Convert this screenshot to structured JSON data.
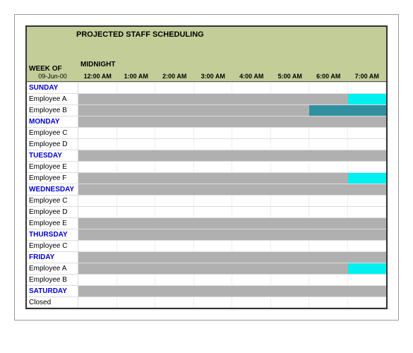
{
  "title": "PROJECTED STAFF SCHEDULING",
  "week_of_label": "WEEK OF",
  "week_of_date": "09-Jun-00",
  "midnight_label": "MIDNIGHT",
  "time_headers": [
    "12:00 AM",
    "1:00 AM",
    "2:00 AM",
    "3:00 AM",
    "4:00 AM",
    "5:00 AM",
    "6:00 AM",
    "7:00 AM"
  ],
  "colors": {
    "header_bg": "#c3cd98",
    "day_label": "#0000cc",
    "bar_gray": "#b0b0b0",
    "bar_cyan": "#00f0f0",
    "bar_teal": "#3090a0"
  },
  "rows": [
    {
      "type": "day",
      "label": "SUNDAY",
      "bars": []
    },
    {
      "type": "emp",
      "label": "Employee A",
      "bars": [
        {
          "start": 0,
          "end": 87.5,
          "color": "#b0b0b0"
        },
        {
          "start": 87.5,
          "end": 100,
          "color": "#00f0f0"
        }
      ]
    },
    {
      "type": "emp",
      "label": "Employee B",
      "bars": [
        {
          "start": 0,
          "end": 75,
          "color": "#b0b0b0"
        },
        {
          "start": 75,
          "end": 100,
          "color": "#3090a0"
        }
      ]
    },
    {
      "type": "day",
      "label": "MONDAY",
      "bars": [
        {
          "start": 0,
          "end": 100,
          "color": "#b0b0b0"
        }
      ]
    },
    {
      "type": "emp",
      "label": "Employee C",
      "bars": []
    },
    {
      "type": "emp",
      "label": "Employee D",
      "bars": []
    },
    {
      "type": "day",
      "label": "TUESDAY",
      "bars": [
        {
          "start": 0,
          "end": 100,
          "color": "#b0b0b0"
        }
      ]
    },
    {
      "type": "emp",
      "label": "Employee E",
      "bars": []
    },
    {
      "type": "emp",
      "label": "Employee F",
      "bars": [
        {
          "start": 0,
          "end": 87.5,
          "color": "#b0b0b0"
        },
        {
          "start": 87.5,
          "end": 100,
          "color": "#00f0f0"
        }
      ]
    },
    {
      "type": "day",
      "label": "WEDNESDAY",
      "bars": [
        {
          "start": 0,
          "end": 100,
          "color": "#b0b0b0"
        }
      ]
    },
    {
      "type": "emp",
      "label": "Employee C",
      "bars": []
    },
    {
      "type": "emp",
      "label": "Employee D",
      "bars": []
    },
    {
      "type": "emp",
      "label": "Employee E",
      "bars": [
        {
          "start": 0,
          "end": 100,
          "color": "#b0b0b0"
        }
      ]
    },
    {
      "type": "day",
      "label": "THURSDAY",
      "bars": [
        {
          "start": 0,
          "end": 100,
          "color": "#b0b0b0"
        }
      ]
    },
    {
      "type": "emp",
      "label": "Employee C",
      "bars": []
    },
    {
      "type": "day",
      "label": "FRIDAY",
      "bars": [
        {
          "start": 0,
          "end": 100,
          "color": "#b0b0b0"
        }
      ]
    },
    {
      "type": "emp",
      "label": "Employee A",
      "bars": [
        {
          "start": 0,
          "end": 87.5,
          "color": "#b0b0b0"
        },
        {
          "start": 87.5,
          "end": 100,
          "color": "#00f0f0"
        }
      ]
    },
    {
      "type": "emp",
      "label": "Employee B",
      "bars": []
    },
    {
      "type": "day",
      "label": "SATURDAY",
      "bars": [
        {
          "start": 0,
          "end": 100,
          "color": "#b0b0b0"
        }
      ]
    },
    {
      "type": "emp",
      "label": "Closed",
      "bars": []
    }
  ]
}
